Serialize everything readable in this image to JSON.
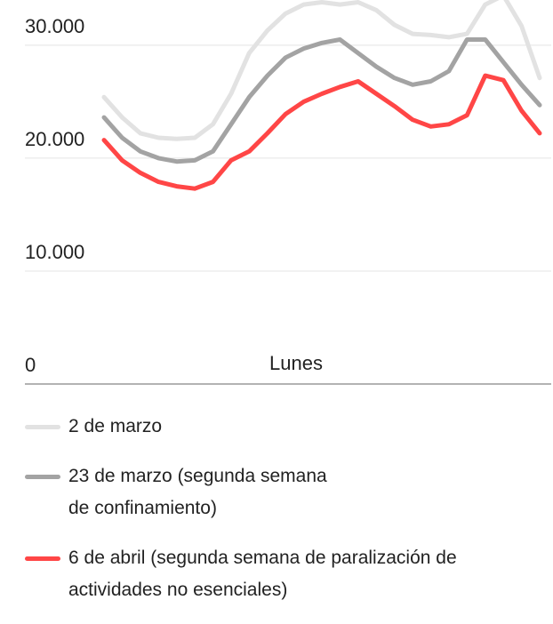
{
  "chart_data": {
    "type": "line",
    "x_label": "Lunes",
    "ylim": [
      0,
      34000
    ],
    "yticks": [
      0,
      {
        "value": 10000,
        "label": "10.000"
      },
      {
        "value": 20000,
        "label": "20.000"
      },
      {
        "value": 30000,
        "label": "30.000"
      }
    ],
    "grid": true,
    "legend": "bottom",
    "series": [
      {
        "name": "2 de marzo",
        "color": "#e2e2e2",
        "values": [
          25400,
          23600,
          22200,
          21800,
          21700,
          21800,
          23000,
          25700,
          29300,
          31300,
          32800,
          33600,
          33800,
          33600,
          33800,
          33100,
          31800,
          31000,
          30900,
          30700,
          31000,
          33600,
          34400,
          31700,
          27100
        ]
      },
      {
        "name": "23 de marzo (segunda semana de confinamiento)",
        "color": "#a3a3a3",
        "values": [
          23600,
          21800,
          20600,
          20000,
          19700,
          19800,
          20600,
          23000,
          25400,
          27300,
          28900,
          29700,
          30200,
          30500,
          29300,
          28100,
          27100,
          26500,
          26800,
          27700,
          30500,
          30500,
          28500,
          26500,
          24700
        ]
      },
      {
        "name": "6 de abril (segunda semana de paralización de actividades no esenciales)",
        "color": "#ff4646",
        "values": [
          21600,
          19800,
          18700,
          17900,
          17500,
          17300,
          17900,
          19800,
          20600,
          22200,
          23900,
          25000,
          25700,
          26300,
          26800,
          25700,
          24600,
          23400,
          22800,
          23000,
          23800,
          27300,
          26900,
          24200,
          22200
        ]
      }
    ]
  }
}
